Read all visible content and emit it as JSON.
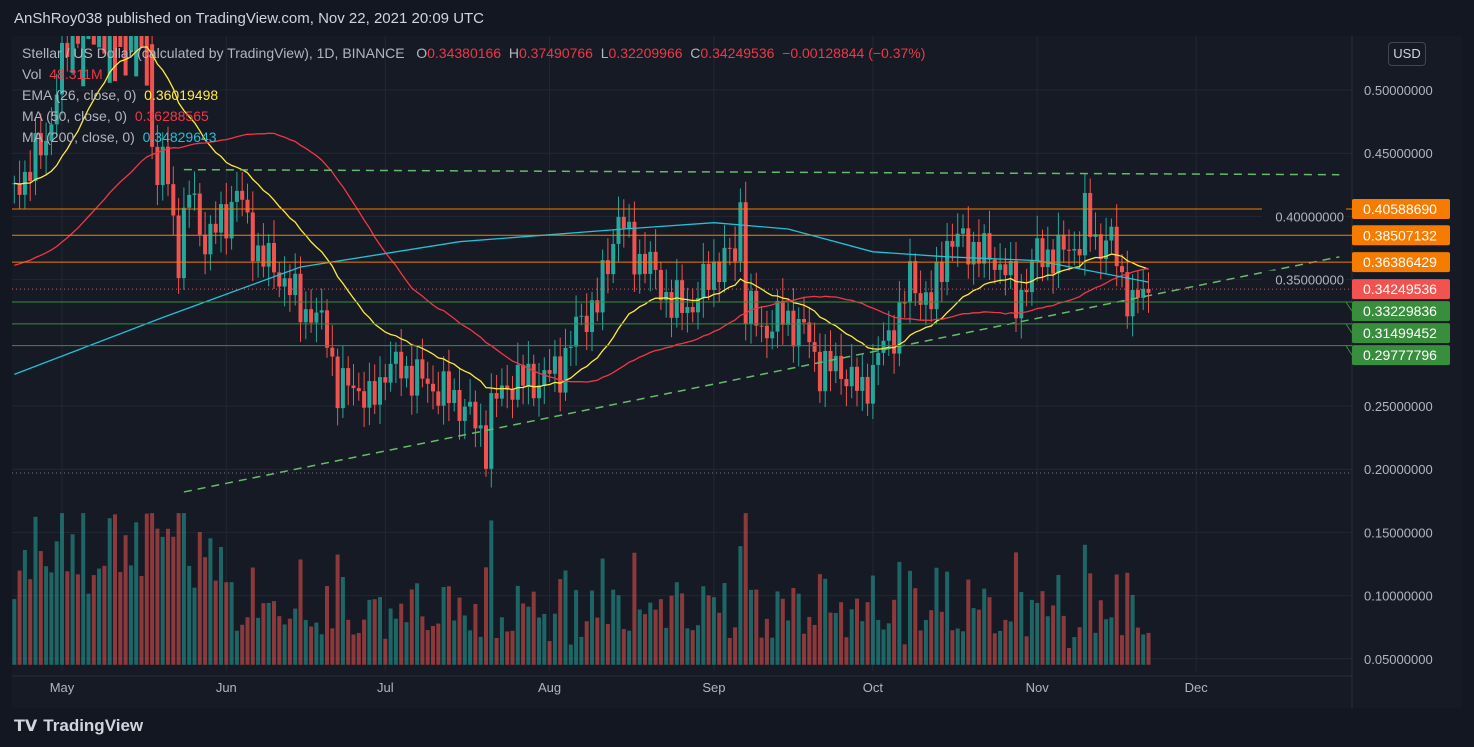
{
  "header": {
    "published": "AnShRoy038 published on TradingView.com, Nov 22, 2021 20:09 UTC"
  },
  "legend": {
    "symbol": "Stellar / US Dollar (calculated by TradingView), 1D, BINANCE",
    "o_label": "O",
    "o": "0.34380166",
    "h_label": "H",
    "h": "0.37490766",
    "l_label": "L",
    "l": "0.32209966",
    "c_label": "C",
    "c": "0.34249536",
    "change": "−0.00128844 (−0.37%)",
    "vol_label": "Vol",
    "vol": "48.311M",
    "ema_label": "EMA (26, close, 0)",
    "ema": "0.36019498",
    "ma50_label": "MA (50, close, 0)",
    "ma50": "0.36288565",
    "ma200_label": "MA (200, close, 0)",
    "ma200": "0.34829643"
  },
  "currency_button": "USD",
  "footer": {
    "brand": "TradingView"
  },
  "colors": {
    "up": "#26a69a",
    "down": "#ef5350",
    "ema": "#ffeb3b",
    "ma50": "#f23645",
    "ma200": "#22c1d6",
    "orange": "#f57c00",
    "green": "#388e3c",
    "last": "#f05350"
  },
  "chart_data": {
    "type": "candlestick",
    "y_axis": {
      "range": [
        0.03,
        0.54
      ],
      "ticks": [
        "0.50000000",
        "0.45000000",
        "0.40000000",
        "0.35000000",
        "0.25000000",
        "0.20000000",
        "0.15000000",
        "0.10000000",
        "0.05000000"
      ],
      "tick_values": [
        0.5,
        0.45,
        0.4,
        0.35,
        0.25,
        0.2,
        0.15,
        0.1,
        0.05
      ]
    },
    "x_axis": {
      "ticks": [
        "May",
        "Jun",
        "Jul",
        "Aug",
        "Sep",
        "Oct",
        "Nov",
        "Dec"
      ],
      "tick_dates": [
        "2021-05-01",
        "2021-06-01",
        "2021-07-01",
        "2021-08-01",
        "2021-09-01",
        "2021-10-01",
        "2021-11-01",
        "2021-12-01"
      ],
      "range": [
        "2021-04-22",
        "2021-12-28"
      ]
    },
    "close_anchors": [
      [
        "2021-04-22",
        0.42
      ],
      [
        "2021-04-25",
        0.44
      ],
      [
        "2021-04-28",
        0.46
      ],
      [
        "2021-05-01",
        0.52
      ],
      [
        "2021-05-05",
        0.58
      ],
      [
        "2021-05-10",
        0.6
      ],
      [
        "2021-05-13",
        0.55
      ],
      [
        "2021-05-16",
        0.58
      ],
      [
        "2021-05-19",
        0.42
      ],
      [
        "2021-05-20",
        0.45
      ],
      [
        "2021-05-23",
        0.37
      ],
      [
        "2021-05-25",
        0.42
      ],
      [
        "2021-05-28",
        0.38
      ],
      [
        "2021-06-01",
        0.4
      ],
      [
        "2021-06-03",
        0.42
      ],
      [
        "2021-06-07",
        0.37
      ],
      [
        "2021-06-10",
        0.36
      ],
      [
        "2021-06-15",
        0.33
      ],
      [
        "2021-06-20",
        0.31
      ],
      [
        "2021-06-22",
        0.26
      ],
      [
        "2021-06-25",
        0.27
      ],
      [
        "2021-06-28",
        0.25
      ],
      [
        "2021-07-01",
        0.28
      ],
      [
        "2021-07-04",
        0.28
      ],
      [
        "2021-07-08",
        0.27
      ],
      [
        "2021-07-12",
        0.26
      ],
      [
        "2021-07-16",
        0.25
      ],
      [
        "2021-07-20",
        0.22
      ],
      [
        "2021-07-21",
        0.25
      ],
      [
        "2021-07-25",
        0.27
      ],
      [
        "2021-07-30",
        0.27
      ],
      [
        "2021-08-03",
        0.28
      ],
      [
        "2021-08-07",
        0.32
      ],
      [
        "2021-08-10",
        0.33
      ],
      [
        "2021-08-14",
        0.4
      ],
      [
        "2021-08-17",
        0.37
      ],
      [
        "2021-08-20",
        0.36
      ],
      [
        "2021-08-24",
        0.33
      ],
      [
        "2021-08-28",
        0.33
      ],
      [
        "2021-09-01",
        0.36
      ],
      [
        "2021-09-05",
        0.37
      ],
      [
        "2021-09-06",
        0.41
      ],
      [
        "2021-09-07",
        0.33
      ],
      [
        "2021-09-10",
        0.31
      ],
      [
        "2021-09-14",
        0.32
      ],
      [
        "2021-09-18",
        0.31
      ],
      [
        "2021-09-21",
        0.28
      ],
      [
        "2021-09-25",
        0.28
      ],
      [
        "2021-09-29",
        0.26
      ],
      [
        "2021-10-02",
        0.29
      ],
      [
        "2021-10-05",
        0.31
      ],
      [
        "2021-10-08",
        0.35
      ],
      [
        "2021-10-12",
        0.33
      ],
      [
        "2021-10-15",
        0.38
      ],
      [
        "2021-10-18",
        0.38
      ],
      [
        "2021-10-22",
        0.37
      ],
      [
        "2021-10-26",
        0.36
      ],
      [
        "2021-10-28",
        0.33
      ],
      [
        "2021-11-01",
        0.37
      ],
      [
        "2021-11-05",
        0.37
      ],
      [
        "2021-11-09",
        0.38
      ],
      [
        "2021-11-10",
        0.4
      ],
      [
        "2021-11-12",
        0.38
      ],
      [
        "2021-11-15",
        0.38
      ],
      [
        "2021-11-17",
        0.35
      ],
      [
        "2021-11-19",
        0.33
      ],
      [
        "2021-11-22",
        0.3425
      ]
    ],
    "ma200_anchors": [
      [
        "2021-04-22",
        0.275
      ],
      [
        "2021-05-20",
        0.32
      ],
      [
        "2021-06-15",
        0.36
      ],
      [
        "2021-07-15",
        0.38
      ],
      [
        "2021-08-15",
        0.39
      ],
      [
        "2021-09-01",
        0.395
      ],
      [
        "2021-09-15",
        0.39
      ],
      [
        "2021-10-01",
        0.372
      ],
      [
        "2021-10-15",
        0.368
      ],
      [
        "2021-11-01",
        0.365
      ],
      [
        "2021-11-22",
        0.348
      ]
    ],
    "price_lines": [
      {
        "value": 0.4058869,
        "label": "0.40588690",
        "color": "#f57c00",
        "style": "solid"
      },
      {
        "value": 0.38507132,
        "label": "0.38507132",
        "color": "#f57c00",
        "style": "solid"
      },
      {
        "value": 0.36386429,
        "label": "0.36386429",
        "color": "#f57c00",
        "style": "solid"
      },
      {
        "value": 0.34249536,
        "label": "0.34249536",
        "color": "#f05350",
        "style": "dotted"
      },
      {
        "value": 0.33229836,
        "label": "0.33229836",
        "color": "#388e3c",
        "style": "solid"
      },
      {
        "value": 0.31499452,
        "label": "0.31499452",
        "color": "#388e3c",
        "style": "solid"
      },
      {
        "value": 0.29777796,
        "label": "0.29777796",
        "color": "#388e3c",
        "style": "solid"
      }
    ],
    "resistance": {
      "from": [
        "2021-05-24",
        0.437
      ],
      "to": [
        "2021-12-28",
        0.433
      ]
    },
    "trendline": {
      "from": [
        "2021-05-24",
        0.182
      ],
      "to": [
        "2021-12-28",
        0.368
      ]
    },
    "support_dotted": 0.197
  }
}
